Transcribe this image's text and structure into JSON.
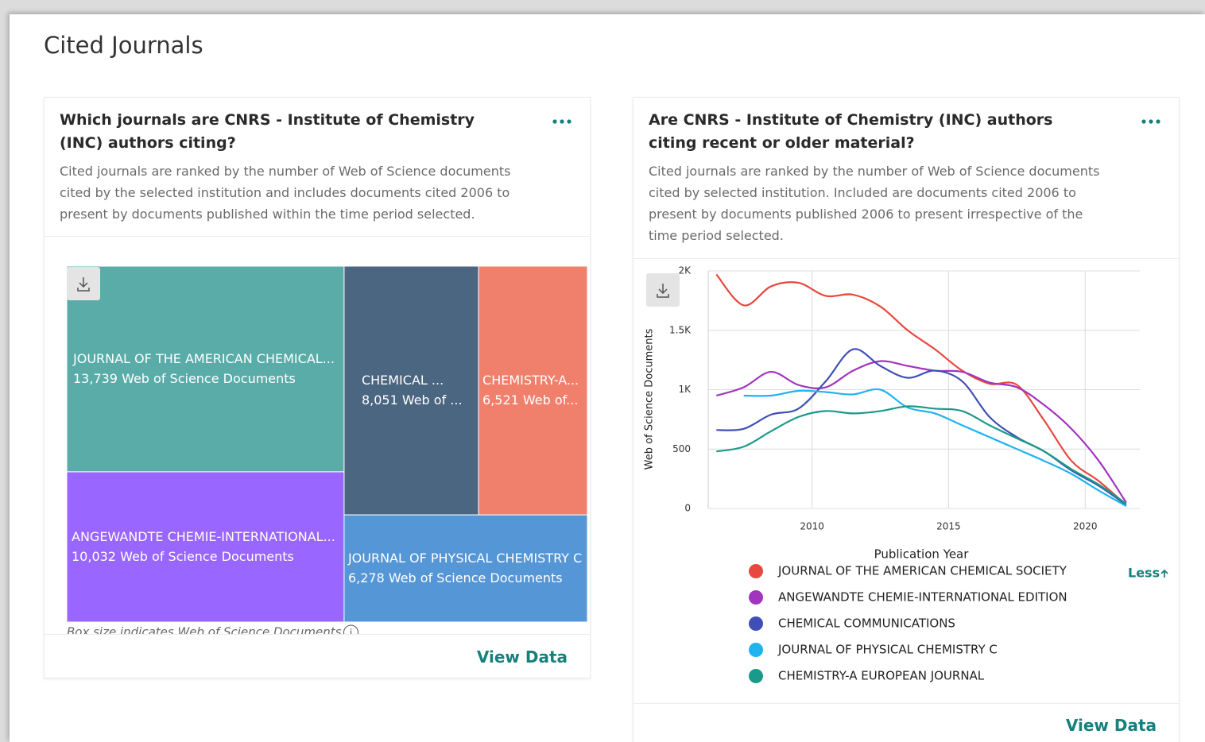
{
  "page_title": "Cited Journals",
  "chart_data": [
    {
      "type": "treemap",
      "title": "Which journals are CNRS - Institute of Chemistry (INC) authors citing?",
      "subtitle": "Cited journals are ranked by the number of Web of Science documents cited by the selected institution and includes documents cited 2006 to present by documents published within the time period selected.",
      "categories": [
        "JOURNAL OF THE AMERICAN CHEMICAL...",
        "ANGEWANDTE CHEMIE-INTERNATIONAL...",
        "CHEMICAL ...",
        "CHEMISTRY-A...",
        "JOURNAL OF PHYSICAL CHEMISTRY C"
      ],
      "values": [
        13739,
        10032,
        8051,
        6521,
        6278
      ],
      "value_labels": [
        "13,739 Web of Science Documents",
        "10,032 Web of Science Documents",
        "8,051 Web of ...",
        "6,521 Web of...",
        "6,278 Web of Science Documents"
      ],
      "colors": [
        "#5aaca9",
        "#9966ff",
        "#4b6680",
        "#f0806c",
        "#5596d6"
      ],
      "note": "Box size indicates Web of Science Documents",
      "action": "View Data"
    },
    {
      "type": "line",
      "title": "Are CNRS - Institute of Chemistry (INC) authors citing recent or older material?",
      "subtitle": "Cited journals are ranked by the number of Web of Science documents cited by selected institution. Included are documents cited 2006 to present by documents published 2006 to present irrespective of the time period selected.",
      "x_label": "Publication Year",
      "y_label": "Web of Science Documents",
      "x": [
        2006.5,
        2007.5,
        2008.5,
        2009.5,
        2010.5,
        2011.5,
        2012.5,
        2013.5,
        2014.5,
        2015.5,
        2016.5,
        2017.5,
        2018.5,
        2019.5,
        2020.5,
        2021.5
      ],
      "xlim": [
        2006.2,
        2022
      ],
      "xticks": [
        2010,
        2015,
        2020
      ],
      "ylim": [
        0,
        2000
      ],
      "yticks": [
        0,
        500,
        {
          "value": 1000,
          "label": "1K"
        },
        {
          "value": 1500,
          "label": "1.5K"
        },
        {
          "value": 2000,
          "label": "2K"
        }
      ],
      "grid": true,
      "series": [
        {
          "name": "JOURNAL OF THE AMERICAN CHEMICAL SOCIETY",
          "color": "#e8483f",
          "values": [
            1970,
            1710,
            1870,
            1900,
            1790,
            1800,
            1700,
            1500,
            1340,
            1160,
            1050,
            1040,
            740,
            400,
            230,
            30
          ]
        },
        {
          "name": "ANGEWANDTE CHEMIE-INTERNATIONAL EDITION",
          "color": "#a235bf",
          "values": [
            950,
            1020,
            1150,
            1040,
            1020,
            1160,
            1240,
            1200,
            1160,
            1150,
            1060,
            1020,
            870,
            670,
            400,
            50
          ]
        },
        {
          "name": "CHEMICAL COMMUNICATIONS",
          "color": "#3f4fb5",
          "values": [
            660,
            670,
            790,
            840,
            1070,
            1340,
            1200,
            1100,
            1160,
            1070,
            770,
            600,
            480,
            320,
            190,
            30
          ]
        },
        {
          "name": "JOURNAL OF PHYSICAL CHEMISTRY C",
          "color": "#1fb3f0",
          "values": [
            null,
            950,
            950,
            990,
            980,
            960,
            1000,
            850,
            800,
            700,
            600,
            500,
            400,
            290,
            150,
            20
          ]
        },
        {
          "name": "CHEMISTRY-A EUROPEAN JOURNAL",
          "color": "#1a9a8a",
          "values": [
            480,
            520,
            650,
            770,
            820,
            800,
            820,
            860,
            840,
            820,
            700,
            590,
            480,
            330,
            200,
            40
          ]
        }
      ],
      "legend_toggle": "Less",
      "action": "View Data"
    }
  ]
}
